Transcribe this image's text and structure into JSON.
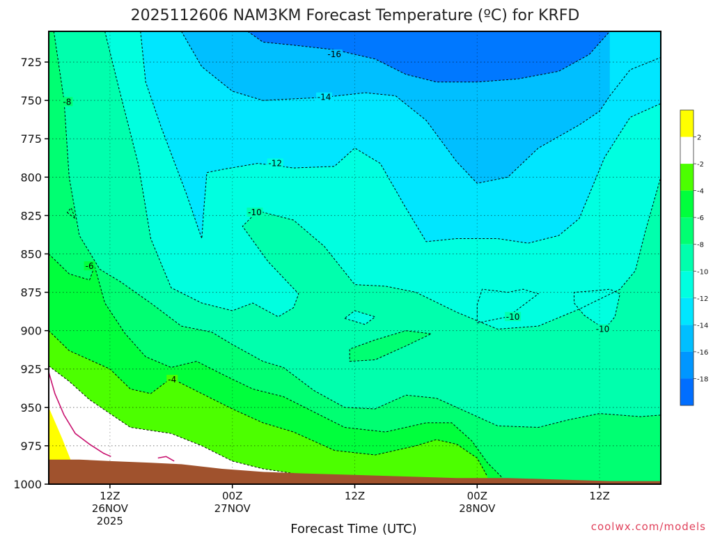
{
  "colors": {
    "frame": "#000000",
    "terrain": "#a0522d",
    "above_zero": "#ffff00",
    "freezing_line": "#c8106e",
    "watermark": "#e0405a"
  },
  "chart_data": {
    "type": "heatmap",
    "title": "2025112606 NAM3KM Forecast Temperature (ºC) for KRFD",
    "xlabel": "Forecast Time (UTC)",
    "ylabel": "",
    "watermark": "coolwx.com/models",
    "x_axis_unit": "forecast hour",
    "x_range": [
      0,
      60
    ],
    "y_range": [
      1000,
      705
    ],
    "y_ticks": [
      {
        "value": 725,
        "label": "725"
      },
      {
        "value": 750,
        "label": "750"
      },
      {
        "value": 775,
        "label": "775"
      },
      {
        "value": 800,
        "label": "800"
      },
      {
        "value": 825,
        "label": "825"
      },
      {
        "value": 850,
        "label": "850"
      },
      {
        "value": 875,
        "label": "875"
      },
      {
        "value": 900,
        "label": "900"
      },
      {
        "value": 925,
        "label": "925"
      },
      {
        "value": 950,
        "label": "950"
      },
      {
        "value": 975,
        "label": "975"
      },
      {
        "value": 1000,
        "label": "1000"
      }
    ],
    "x_ticks": [
      {
        "value": 6,
        "lines": [
          "12Z",
          "26NOV",
          "2025"
        ]
      },
      {
        "value": 18,
        "lines": [
          "00Z",
          "27NOV"
        ]
      },
      {
        "value": 30,
        "lines": [
          "12Z"
        ]
      },
      {
        "value": 42,
        "lines": [
          "00Z",
          "28NOV"
        ]
      },
      {
        "value": 54,
        "lines": [
          "12Z"
        ]
      }
    ],
    "grid": "dotted",
    "colorbar": {
      "placement": "right",
      "bins": [
        {
          "from": 2,
          "to": 6,
          "color": "#ffff00"
        },
        {
          "from": -2,
          "to": 2,
          "color": "#ffffff"
        },
        {
          "from": -4,
          "to": -2,
          "color": "#4cff00"
        },
        {
          "from": -6,
          "to": -4,
          "color": "#00ff3c"
        },
        {
          "from": -8,
          "to": -6,
          "color": "#00ff72"
        },
        {
          "from": -10,
          "to": -8,
          "color": "#00ffad"
        },
        {
          "from": -12,
          "to": -10,
          "color": "#00ffe0"
        },
        {
          "from": -14,
          "to": -12,
          "color": "#00e6ff"
        },
        {
          "from": -16,
          "to": -14,
          "color": "#00bfff"
        },
        {
          "from": -18,
          "to": -16,
          "color": "#0096ff"
        },
        {
          "from": -22,
          "to": -18,
          "color": "#006eff"
        }
      ],
      "labels": [
        "2",
        "-2",
        "-4",
        "-6",
        "-8",
        "-10",
        "-12",
        "-14",
        "-16",
        "-18"
      ]
    },
    "freezing_line": [
      {
        "x": 0.0,
        "p": 927
      },
      {
        "x": 0.6,
        "p": 941
      },
      {
        "x": 1.5,
        "p": 955
      },
      {
        "x": 2.6,
        "p": 967
      },
      {
        "x": 4.0,
        "p": 974
      },
      {
        "x": 5.4,
        "p": 980
      },
      {
        "x": 6.1,
        "p": 982
      }
    ],
    "freezing_line_2": [
      {
        "x": 10.7,
        "p": 983
      },
      {
        "x": 11.5,
        "p": 982
      },
      {
        "x": 12.3,
        "p": 985
      }
    ],
    "terrain_surface": [
      {
        "x": 0,
        "p": 984
      },
      {
        "x": 3,
        "p": 984
      },
      {
        "x": 6,
        "p": 985
      },
      {
        "x": 10,
        "p": 986
      },
      {
        "x": 13,
        "p": 987
      },
      {
        "x": 17,
        "p": 990
      },
      {
        "x": 21,
        "p": 992
      },
      {
        "x": 25,
        "p": 993
      },
      {
        "x": 30,
        "p": 994
      },
      {
        "x": 35,
        "p": 995
      },
      {
        "x": 40,
        "p": 996
      },
      {
        "x": 45,
        "p": 996
      },
      {
        "x": 50,
        "p": 997
      },
      {
        "x": 55,
        "p": 998
      },
      {
        "x": 60,
        "p": 998
      }
    ],
    "contours": [
      {
        "level": -16,
        "label": "-16",
        "label_at": {
          "x": 28.0,
          "p": 720
        },
        "points": [
          {
            "x": 19.5,
            "p": 705
          },
          {
            "x": 21,
            "p": 712
          },
          {
            "x": 24,
            "p": 714
          },
          {
            "x": 28,
            "p": 717
          },
          {
            "x": 32,
            "p": 723
          },
          {
            "x": 35,
            "p": 733
          },
          {
            "x": 38,
            "p": 738
          },
          {
            "x": 42,
            "p": 738
          },
          {
            "x": 46,
            "p": 736
          },
          {
            "x": 50,
            "p": 731
          },
          {
            "x": 53,
            "p": 720
          },
          {
            "x": 55,
            "p": 705
          }
        ]
      },
      {
        "level": -14,
        "label": "-14",
        "label_at": {
          "x": 27.0,
          "p": 748
        },
        "points": [
          {
            "x": 13,
            "p": 705
          },
          {
            "x": 15,
            "p": 728
          },
          {
            "x": 18,
            "p": 744
          },
          {
            "x": 21,
            "p": 750
          },
          {
            "x": 24,
            "p": 749
          },
          {
            "x": 27,
            "p": 748
          },
          {
            "x": 31,
            "p": 745
          },
          {
            "x": 34,
            "p": 747
          },
          {
            "x": 37,
            "p": 763
          },
          {
            "x": 40,
            "p": 790
          },
          {
            "x": 42,
            "p": 804
          },
          {
            "x": 45,
            "p": 800
          },
          {
            "x": 48,
            "p": 781
          },
          {
            "x": 52,
            "p": 766
          },
          {
            "x": 54,
            "p": 757
          },
          {
            "x": 55,
            "p": 747
          },
          {
            "x": 57,
            "p": 730
          },
          {
            "x": 60,
            "p": 722
          }
        ]
      },
      {
        "level": -12,
        "label": "-12",
        "label_at": {
          "x": 22.2,
          "p": 791
        },
        "points": [
          {
            "x": 9,
            "p": 705
          },
          {
            "x": 9.5,
            "p": 738
          },
          {
            "x": 11,
            "p": 767
          },
          {
            "x": 13.5,
            "p": 811
          },
          {
            "x": 15,
            "p": 840
          },
          {
            "x": 15.2,
            "p": 821
          },
          {
            "x": 15.5,
            "p": 797
          },
          {
            "x": 17,
            "p": 795
          },
          {
            "x": 20.5,
            "p": 791
          },
          {
            "x": 24,
            "p": 794
          },
          {
            "x": 28,
            "p": 793
          },
          {
            "x": 30,
            "p": 781
          },
          {
            "x": 32.5,
            "p": 791
          },
          {
            "x": 35,
            "p": 820
          },
          {
            "x": 37,
            "p": 842
          },
          {
            "x": 40,
            "p": 840
          },
          {
            "x": 44,
            "p": 840
          },
          {
            "x": 47,
            "p": 843
          },
          {
            "x": 50,
            "p": 838
          },
          {
            "x": 52,
            "p": 827
          },
          {
            "x": 54.5,
            "p": 787
          },
          {
            "x": 57,
            "p": 761
          },
          {
            "x": 60,
            "p": 752
          }
        ]
      },
      {
        "level": -10,
        "label": "-10",
        "label_at": {
          "x": 20.2,
          "p": 823
        },
        "points": [
          {
            "x": 5.5,
            "p": 705
          },
          {
            "x": 6.8,
            "p": 740
          },
          {
            "x": 8.8,
            "p": 792
          },
          {
            "x": 10,
            "p": 840
          },
          {
            "x": 12,
            "p": 872
          },
          {
            "x": 15,
            "p": 882
          },
          {
            "x": 18,
            "p": 887
          },
          {
            "x": 20,
            "p": 882
          },
          {
            "x": 22.5,
            "p": 891
          },
          {
            "x": 24,
            "p": 885
          },
          {
            "x": 24.5,
            "p": 876
          },
          {
            "x": 21.5,
            "p": 855
          },
          {
            "x": 19,
            "p": 832
          },
          {
            "x": 20.5,
            "p": 822
          },
          {
            "x": 24,
            "p": 828
          },
          {
            "x": 27,
            "p": 845
          },
          {
            "x": 30,
            "p": 870
          },
          {
            "x": 33,
            "p": 871
          },
          {
            "x": 36,
            "p": 875
          },
          {
            "x": 40,
            "p": 888
          },
          {
            "x": 44,
            "p": 899
          },
          {
            "x": 48,
            "p": 897
          },
          {
            "x": 52,
            "p": 886
          },
          {
            "x": 56,
            "p": 873
          },
          {
            "x": 57.5,
            "p": 861
          },
          {
            "x": 58.5,
            "p": 835
          },
          {
            "x": 60,
            "p": 800
          }
        ]
      },
      {
        "level": -8,
        "label": "-8",
        "label_at": {
          "x": 1.8,
          "p": 751
        },
        "points": [
          {
            "x": 0.5,
            "p": 705
          },
          {
            "x": 1.5,
            "p": 750
          },
          {
            "x": 2,
            "p": 800
          },
          {
            "x": 3,
            "p": 838
          },
          {
            "x": 5,
            "p": 860
          },
          {
            "x": 7,
            "p": 868
          },
          {
            "x": 10,
            "p": 882
          },
          {
            "x": 13,
            "p": 897
          },
          {
            "x": 16,
            "p": 901
          },
          {
            "x": 18,
            "p": 909
          },
          {
            "x": 21,
            "p": 920
          },
          {
            "x": 23,
            "p": 924
          },
          {
            "x": 26,
            "p": 939
          },
          {
            "x": 29,
            "p": 950
          },
          {
            "x": 32,
            "p": 951
          },
          {
            "x": 35,
            "p": 942
          },
          {
            "x": 38,
            "p": 944
          },
          {
            "x": 40,
            "p": 950
          },
          {
            "x": 44,
            "p": 962
          },
          {
            "x": 48,
            "p": 963
          },
          {
            "x": 51,
            "p": 958
          },
          {
            "x": 54,
            "p": 954
          },
          {
            "x": 58,
            "p": 956
          },
          {
            "x": 60,
            "p": 955
          }
        ]
      },
      {
        "level": -6,
        "label": "-6",
        "label_at": {
          "x": 4.0,
          "p": 858
        },
        "points": [
          {
            "x": 0,
            "p": 850
          },
          {
            "x": 2,
            "p": 863
          },
          {
            "x": 4,
            "p": 867
          },
          {
            "x": 4.5,
            "p": 858
          },
          {
            "x": 5.5,
            "p": 882
          },
          {
            "x": 7.5,
            "p": 902
          },
          {
            "x": 9.5,
            "p": 917
          },
          {
            "x": 12,
            "p": 924
          },
          {
            "x": 14.5,
            "p": 920
          },
          {
            "x": 17.5,
            "p": 930
          },
          {
            "x": 20,
            "p": 938
          },
          {
            "x": 23,
            "p": 943
          },
          {
            "x": 26,
            "p": 953
          },
          {
            "x": 29,
            "p": 963
          },
          {
            "x": 33,
            "p": 966
          },
          {
            "x": 37,
            "p": 960
          },
          {
            "x": 39.5,
            "p": 960
          },
          {
            "x": 41.5,
            "p": 972
          },
          {
            "x": 43,
            "p": 986
          },
          {
            "x": 44.5,
            "p": 996
          }
        ]
      },
      {
        "level": -4,
        "label": "-4",
        "label_at": {
          "x": 12.1,
          "p": 932
        },
        "points": [
          {
            "x": 0,
            "p": 900
          },
          {
            "x": 2,
            "p": 913
          },
          {
            "x": 4,
            "p": 919
          },
          {
            "x": 6,
            "p": 925
          },
          {
            "x": 8,
            "p": 938
          },
          {
            "x": 10,
            "p": 941
          },
          {
            "x": 12,
            "p": 931
          },
          {
            "x": 15,
            "p": 941
          },
          {
            "x": 18,
            "p": 951
          },
          {
            "x": 21,
            "p": 960
          },
          {
            "x": 24,
            "p": 966
          },
          {
            "x": 28,
            "p": 978
          },
          {
            "x": 32,
            "p": 981
          },
          {
            "x": 36,
            "p": 975
          },
          {
            "x": 38,
            "p": 971
          },
          {
            "x": 40,
            "p": 974
          },
          {
            "x": 42,
            "p": 983
          },
          {
            "x": 43,
            "p": 995
          }
        ]
      },
      {
        "level": -2,
        "label": "",
        "label_at": null,
        "points": [
          {
            "x": 0,
            "p": 923
          },
          {
            "x": 2,
            "p": 933
          },
          {
            "x": 4,
            "p": 945
          },
          {
            "x": 6,
            "p": 954
          },
          {
            "x": 8,
            "p": 963
          },
          {
            "x": 10,
            "p": 965
          },
          {
            "x": 12,
            "p": 967
          },
          {
            "x": 15,
            "p": 975
          },
          {
            "x": 18,
            "p": 985
          },
          {
            "x": 21,
            "p": 990
          },
          {
            "x": 24,
            "p": 993
          }
        ]
      },
      {
        "level": -10,
        "label": "-10",
        "label_at": {
          "x": 45.5,
          "p": 891
        },
        "points": [
          {
            "x": 42,
            "p": 895
          },
          {
            "x": 45,
            "p": 891
          },
          {
            "x": 48,
            "p": 876
          },
          {
            "x": 46.5,
            "p": 873
          },
          {
            "x": 45,
            "p": 875
          },
          {
            "x": 42.5,
            "p": 873
          },
          {
            "x": 42,
            "p": 883
          },
          {
            "x": 42,
            "p": 895
          }
        ]
      },
      {
        "level": -10,
        "label": "-10",
        "label_at": {
          "x": 54.3,
          "p": 899
        },
        "points": [
          {
            "x": 51.5,
            "p": 882
          },
          {
            "x": 52.5,
            "p": 890
          },
          {
            "x": 54.5,
            "p": 899
          },
          {
            "x": 55.5,
            "p": 891
          },
          {
            "x": 56,
            "p": 876
          },
          {
            "x": 55,
            "p": 873
          },
          {
            "x": 53.5,
            "p": 874
          },
          {
            "x": 51.5,
            "p": 875
          },
          {
            "x": 51.5,
            "p": 882
          }
        ]
      },
      {
        "level": -8,
        "label": "",
        "label_at": null,
        "points": [
          {
            "x": 29.5,
            "p": 920
          },
          {
            "x": 32,
            "p": 919
          },
          {
            "x": 35,
            "p": 910
          },
          {
            "x": 37.5,
            "p": 902
          },
          {
            "x": 35,
            "p": 900
          },
          {
            "x": 32,
            "p": 906
          },
          {
            "x": 29.5,
            "p": 912
          },
          {
            "x": 29.5,
            "p": 920
          }
        ]
      },
      {
        "level": -10,
        "label": "",
        "label_at": null,
        "points": [
          {
            "x": 29,
            "p": 892
          },
          {
            "x": 31,
            "p": 896
          },
          {
            "x": 32,
            "p": 891
          },
          {
            "x": 30,
            "p": 887
          },
          {
            "x": 29,
            "p": 892
          }
        ]
      },
      {
        "level": -8,
        "label": "",
        "label_at": null,
        "points": [
          {
            "x": 1.8,
            "p": 823
          },
          {
            "x": 2.6,
            "p": 827
          },
          {
            "x": 2.2,
            "p": 820
          },
          {
            "x": 1.8,
            "p": 823
          }
        ]
      }
    ],
    "contour_labels": [
      "-16",
      "-14",
      "-12",
      "-10",
      "-8",
      "-6",
      "-4"
    ]
  }
}
